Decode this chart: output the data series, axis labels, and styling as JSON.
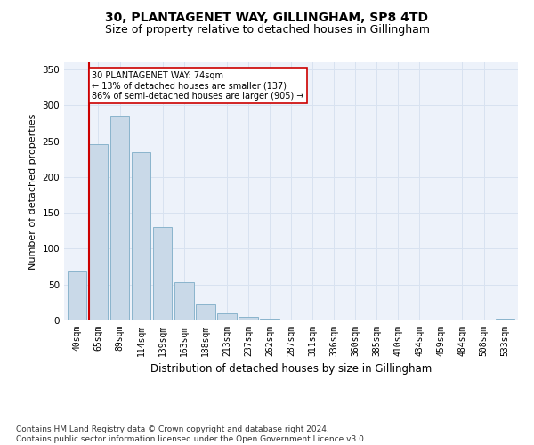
{
  "title": "30, PLANTAGENET WAY, GILLINGHAM, SP8 4TD",
  "subtitle": "Size of property relative to detached houses in Gillingham",
  "xlabel": "Distribution of detached houses by size in Gillingham",
  "ylabel": "Number of detached properties",
  "bar_labels": [
    "40sqm",
    "65sqm",
    "89sqm",
    "114sqm",
    "139sqm",
    "163sqm",
    "188sqm",
    "213sqm",
    "237sqm",
    "262sqm",
    "287sqm",
    "311sqm",
    "336sqm",
    "360sqm",
    "385sqm",
    "410sqm",
    "434sqm",
    "459sqm",
    "484sqm",
    "508sqm",
    "533sqm"
  ],
  "bar_values": [
    68,
    246,
    285,
    235,
    130,
    53,
    22,
    10,
    5,
    2,
    1,
    0,
    0,
    0,
    0,
    0,
    0,
    0,
    0,
    0,
    3
  ],
  "bar_color": "#c9d9e8",
  "bar_edge_color": "#8ab4cc",
  "vline_color": "#cc0000",
  "annotation_text": "30 PLANTAGENET WAY: 74sqm\n← 13% of detached houses are smaller (137)\n86% of semi-detached houses are larger (905) →",
  "annotation_box_color": "#ffffff",
  "annotation_box_edge": "#cc0000",
  "ylim": [
    0,
    360
  ],
  "yticks": [
    0,
    50,
    100,
    150,
    200,
    250,
    300,
    350
  ],
  "grid_color": "#d8e2f0",
  "bg_color": "#edf2fa",
  "footer": "Contains HM Land Registry data © Crown copyright and database right 2024.\nContains public sector information licensed under the Open Government Licence v3.0.",
  "title_fontsize": 10,
  "subtitle_fontsize": 9,
  "xlabel_fontsize": 8.5,
  "ylabel_fontsize": 8,
  "tick_fontsize": 7,
  "footer_fontsize": 6.5
}
